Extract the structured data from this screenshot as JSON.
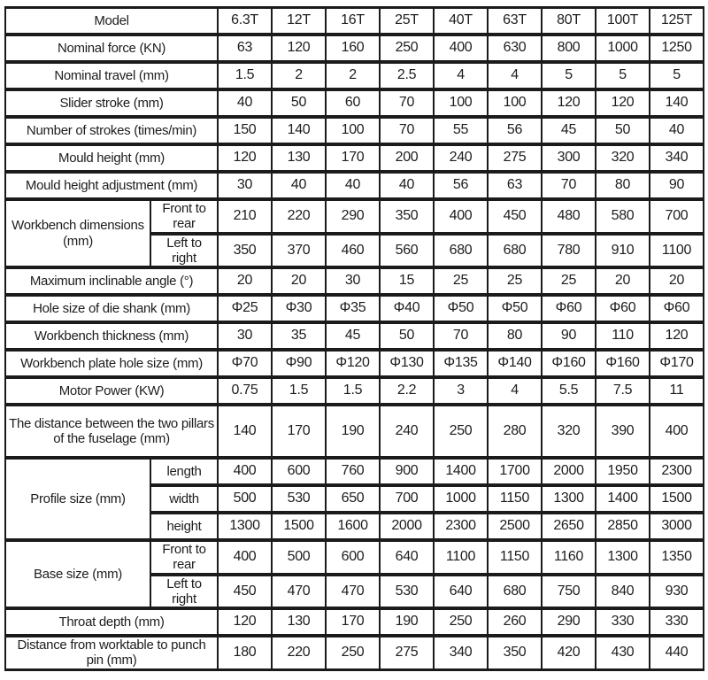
{
  "table": {
    "rows": [
      {
        "label": "Model",
        "values": [
          "6.3T",
          "12T",
          "16T",
          "25T",
          "40T",
          "63T",
          "80T",
          "100T",
          "125T"
        ]
      },
      {
        "label": "Nominal force (KN)",
        "values": [
          "63",
          "120",
          "160",
          "250",
          "400",
          "630",
          "800",
          "1000",
          "1250"
        ]
      },
      {
        "label": "Nominal travel (mm)",
        "values": [
          "1.5",
          "2",
          "2",
          "2.5",
          "4",
          "4",
          "5",
          "5",
          "5"
        ]
      },
      {
        "label": "Slider stroke (mm)",
        "values": [
          "40",
          "50",
          "60",
          "70",
          "100",
          "100",
          "120",
          "120",
          "140"
        ]
      },
      {
        "label": "Number of strokes (times/min)",
        "values": [
          "150",
          "140",
          "100",
          "70",
          "55",
          "56",
          "45",
          "50",
          "40"
        ]
      },
      {
        "label": "Mould height (mm)",
        "values": [
          "120",
          "130",
          "170",
          "200",
          "240",
          "275",
          "300",
          "320",
          "340"
        ]
      },
      {
        "label": "Mould height adjustment (mm)",
        "values": [
          "30",
          "40",
          "40",
          "40",
          "56",
          "63",
          "70",
          "80",
          "90"
        ]
      },
      {
        "label": "Workbench dimensions (mm)",
        "sub": [
          {
            "label": "Front to rear",
            "values": [
              "210",
              "220",
              "290",
              "350",
              "400",
              "450",
              "480",
              "580",
              "700"
            ]
          },
          {
            "label": "Left to right",
            "values": [
              "350",
              "370",
              "460",
              "560",
              "680",
              "680",
              "780",
              "910",
              "1100"
            ]
          }
        ]
      },
      {
        "label": "Maximum inclinable angle (°)",
        "values": [
          "20",
          "20",
          "30",
          "15",
          "25",
          "25",
          "25",
          "20",
          "20"
        ]
      },
      {
        "label": "Hole size of die shank (mm)",
        "values": [
          "Φ25",
          "Φ30",
          "Φ35",
          "Φ40",
          "Φ50",
          "Φ50",
          "Φ60",
          "Φ60",
          "Φ60"
        ]
      },
      {
        "label": "Workbench thickness (mm)",
        "values": [
          "30",
          "35",
          "45",
          "50",
          "70",
          "80",
          "90",
          "110",
          "120"
        ]
      },
      {
        "label": "Workbench plate hole size (mm)",
        "values": [
          "Φ70",
          "Φ90",
          "Φ120",
          "Φ130",
          "Φ135",
          "Φ140",
          "Φ160",
          "Φ160",
          "Φ170"
        ]
      },
      {
        "label": "Motor Power (KW)",
        "values": [
          "0.75",
          "1.5",
          "1.5",
          "2.2",
          "3",
          "4",
          "5.5",
          "7.5",
          "11"
        ]
      },
      {
        "label": "The distance between the two pillars of the fuselage (mm)",
        "tall": true,
        "values": [
          "140",
          "170",
          "190",
          "240",
          "250",
          "280",
          "320",
          "390",
          "400"
        ]
      },
      {
        "label": "Profile size (mm)",
        "sub": [
          {
            "label": "length",
            "values": [
              "400",
              "600",
              "760",
              "900",
              "1400",
              "1700",
              "2000",
              "1950",
              "2300"
            ]
          },
          {
            "label": "width",
            "values": [
              "500",
              "530",
              "650",
              "700",
              "1000",
              "1150",
              "1300",
              "1400",
              "1500"
            ]
          },
          {
            "label": "height",
            "values": [
              "1300",
              "1500",
              "1600",
              "2000",
              "2300",
              "2500",
              "2650",
              "2850",
              "3000"
            ]
          }
        ]
      },
      {
        "label": "Base size (mm)",
        "sub": [
          {
            "label": "Front to rear",
            "values": [
              "400",
              "500",
              "600",
              "640",
              "1100",
              "1150",
              "1160",
              "1300",
              "1350"
            ]
          },
          {
            "label": "Left to right",
            "values": [
              "450",
              "470",
              "470",
              "530",
              "640",
              "680",
              "750",
              "840",
              "930"
            ]
          }
        ]
      },
      {
        "label": "Throat depth (mm)",
        "values": [
          "120",
          "130",
          "170",
          "190",
          "250",
          "260",
          "290",
          "330",
          "330"
        ]
      },
      {
        "label": "Distance from worktable to punch pin (mm)",
        "values": [
          "180",
          "220",
          "250",
          "275",
          "340",
          "350",
          "420",
          "430",
          "440"
        ]
      }
    ]
  }
}
